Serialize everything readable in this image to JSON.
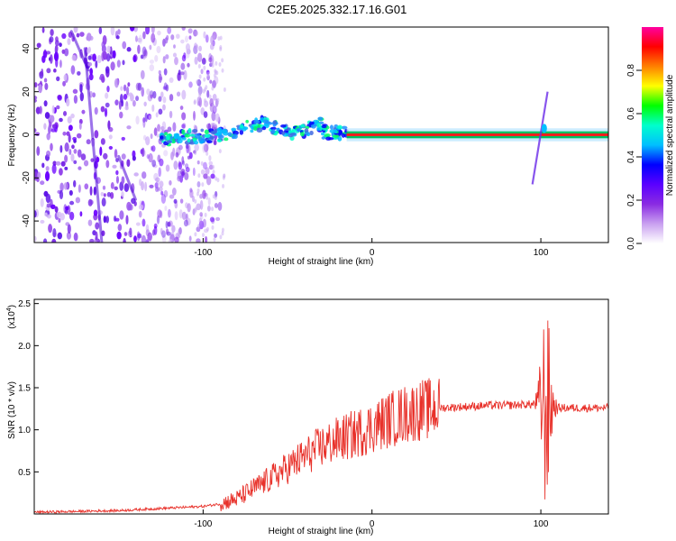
{
  "title": "C2E5.2025.332.17.16.G01",
  "chart_data": [
    {
      "type": "heatmap",
      "name": "spectrogram",
      "xlabel": "Height of straight line (km)",
      "ylabel": "Frequency (Hz)",
      "xlim": [
        -200,
        140
      ],
      "ylim": [
        -50,
        50
      ],
      "xticks": [
        -100,
        0,
        100
      ],
      "xtick_labels": [
        "-100",
        "0",
        "100"
      ],
      "yticks": [
        -40,
        -20,
        0,
        20,
        40
      ],
      "ytick_labels": [
        "-40",
        "-20",
        "0",
        "20",
        "40"
      ],
      "carrier_band": {
        "x_from": -15,
        "x_to": 140,
        "frequency": 0
      },
      "colorbar": {
        "label": "Normalized spectral amplitude",
        "range": [
          0,
          1
        ],
        "ticks": [
          0.0,
          0.2,
          0.4,
          0.6,
          0.8
        ],
        "tick_labels": [
          "0.0",
          "0.2",
          "0.4",
          "0.6",
          "0.8"
        ],
        "colors": [
          "#ffffff",
          "#c9a0f0",
          "#8a2be2",
          "#5a00ff",
          "#0000ff",
          "#00bfff",
          "#00ffcc",
          "#00ff00",
          "#ffff00",
          "#ff8000",
          "#ff0000",
          "#ff00a0"
        ]
      }
    },
    {
      "type": "line",
      "name": "snr",
      "xlabel": "Height of straight line (km)",
      "ylabel": "SNR (10 * v/v)",
      "y_scale_label": "(x10",
      "y_scale_exp": "4",
      "xlim": [
        -200,
        140
      ],
      "ylim": [
        0,
        2.55
      ],
      "xticks": [
        -100,
        0,
        100
      ],
      "xtick_labels": [
        "-100",
        "0",
        "100"
      ],
      "yticks": [
        0.5,
        1.0,
        1.5,
        2.0,
        2.5
      ],
      "ytick_labels": [
        "0.5",
        "1.0",
        "1.5",
        "2.0",
        "2.5"
      ],
      "color": "#e8312a",
      "x": [
        -200,
        -150,
        -120,
        -100,
        -90,
        -80,
        -70,
        -60,
        -50,
        -40,
        -30,
        -20,
        -10,
        0,
        10,
        20,
        30,
        40,
        50,
        60,
        70,
        80,
        90,
        95,
        100,
        103,
        106,
        110,
        120,
        140
      ],
      "values": [
        0.02,
        0.04,
        0.07,
        0.09,
        0.12,
        0.18,
        0.3,
        0.42,
        0.55,
        0.68,
        0.8,
        0.88,
        0.95,
        1.03,
        1.12,
        1.19,
        1.24,
        1.26,
        1.27,
        1.28,
        1.29,
        1.29,
        1.3,
        1.3,
        1.35,
        1.25,
        1.3,
        1.26,
        1.26,
        1.26
      ]
    }
  ]
}
